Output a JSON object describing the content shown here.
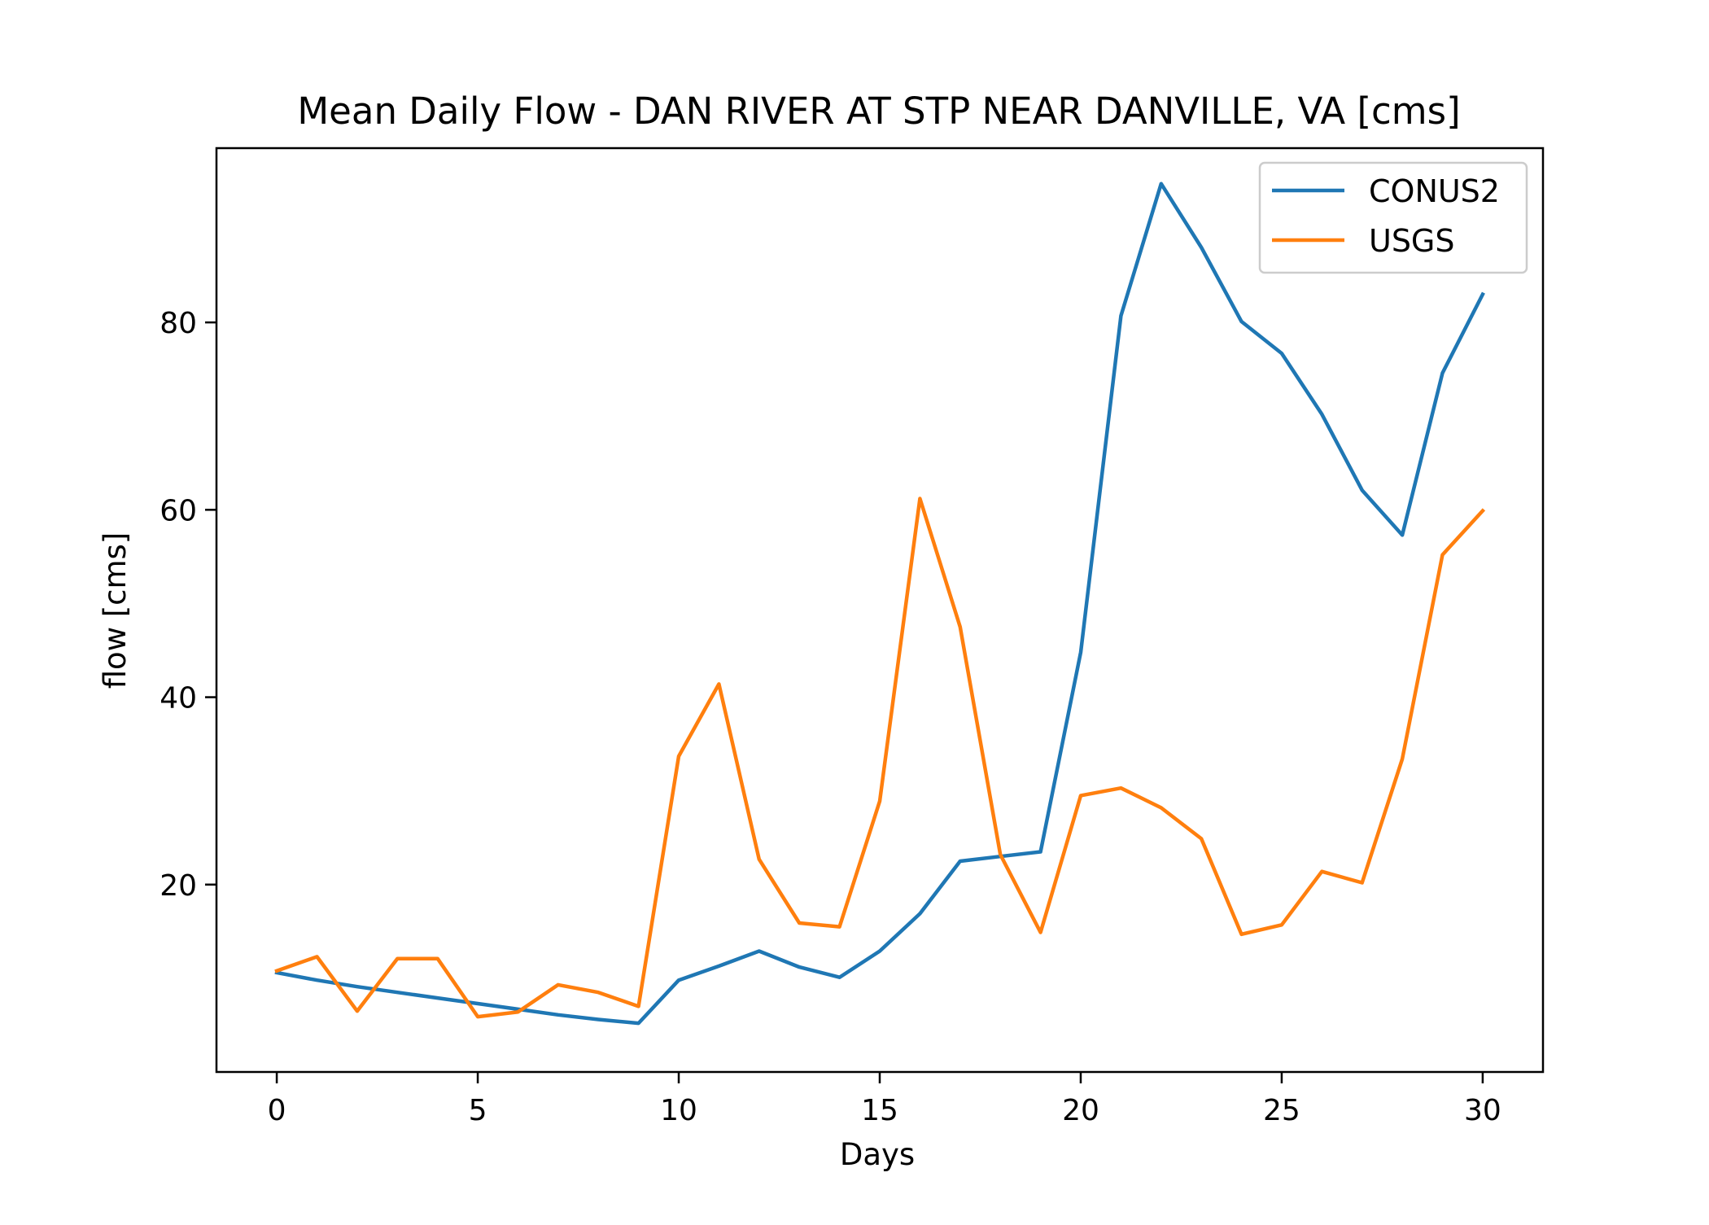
{
  "chart_data": {
    "type": "line",
    "title": "Mean Daily Flow - DAN RIVER AT STP NEAR DANVILLE, VA [cms]",
    "xlabel": "Days",
    "ylabel": "flow [cms]",
    "xlim": [
      -1.5,
      31.5
    ],
    "ylim": [
      0,
      98.6
    ],
    "xticks": [
      0,
      5,
      10,
      15,
      20,
      25,
      30
    ],
    "yticks": [
      20,
      40,
      60,
      80
    ],
    "grid": false,
    "legend_position": "top-right",
    "x": [
      0,
      1,
      2,
      3,
      4,
      5,
      6,
      7,
      8,
      9,
      10,
      11,
      12,
      13,
      14,
      15,
      16,
      17,
      18,
      19,
      20,
      21,
      22,
      23,
      24,
      25,
      26,
      27,
      28,
      29,
      30
    ],
    "series": [
      {
        "name": "CONUS2",
        "color": "#1f77b4",
        "values": [
          10.6,
          9.8,
          9.1,
          8.5,
          7.9,
          7.3,
          6.7,
          6.1,
          5.6,
          5.2,
          9.8,
          11.3,
          12.9,
          11.2,
          10.1,
          12.9,
          16.9,
          22.5,
          23.0,
          23.5,
          44.8,
          80.7,
          94.8,
          88.0,
          80.1,
          76.7,
          70.2,
          62.1,
          57.3,
          74.6,
          83.0
        ]
      },
      {
        "name": "USGS",
        "color": "#ff7f0e",
        "values": [
          10.8,
          12.3,
          6.5,
          12.1,
          12.1,
          5.9,
          6.4,
          9.3,
          8.5,
          7.0,
          33.7,
          41.4,
          22.7,
          15.9,
          15.5,
          28.9,
          61.2,
          47.5,
          23.2,
          14.9,
          29.5,
          30.3,
          28.2,
          24.9,
          14.7,
          15.7,
          21.4,
          20.2,
          33.4,
          55.2,
          59.9
        ]
      }
    ]
  }
}
